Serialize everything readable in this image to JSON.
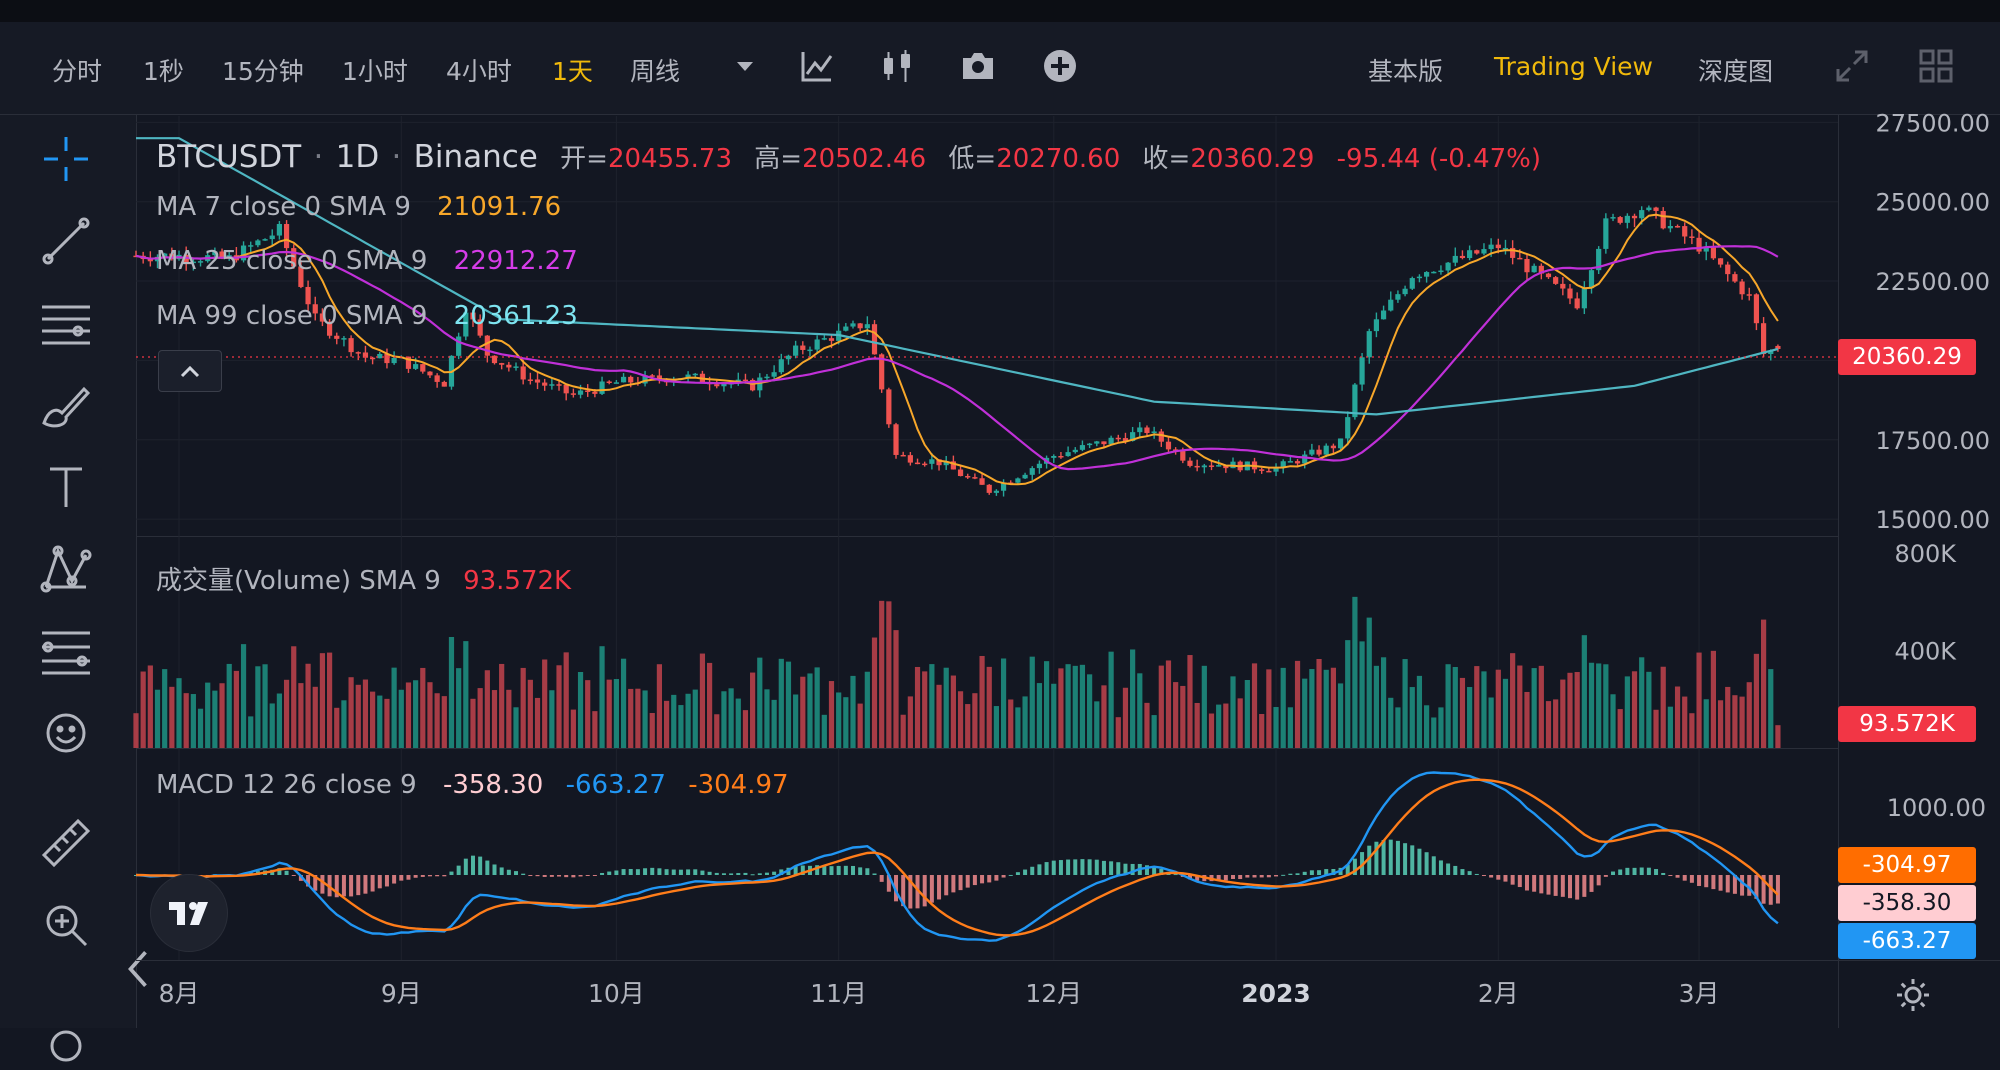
{
  "toolbar": {
    "intervals": [
      "分时",
      "1秒",
      "15分钟",
      "1小时",
      "4小时",
      "1天",
      "周线"
    ],
    "active_interval": "1天",
    "views": [
      "基本版",
      "Trading View",
      "深度图"
    ],
    "active_view": "Trading View"
  },
  "legend": {
    "symbol": "BTCUSDT",
    "interval": "1D",
    "exchange": "Binance",
    "open_label": "开=",
    "open": "20455.73",
    "high_label": "高=",
    "high": "20502.46",
    "low_label": "低=",
    "low": "20270.60",
    "close_label": "收=",
    "close": "20360.29",
    "change": "-95.44 (-0.47%)",
    "ma7_label": "MA 7 close 0 SMA 9",
    "ma7_value": "21091.76",
    "ma25_label": "MA 25 close 0 SMA 9",
    "ma25_value": "22912.27",
    "ma99_label": "MA 99 close 0 SMA 9",
    "ma99_value": "20361.23",
    "volume_label": "成交量(Volume) SMA 9",
    "volume_value": "93.572K",
    "macd_label": "MACD 12 26 close 9",
    "macd_hist": "-358.30",
    "macd_line": "-663.27",
    "macd_signal": "-304.97"
  },
  "price_axis": [
    "27500.00",
    "25000.00",
    "22500.00",
    "17500.00",
    "15000.00"
  ],
  "volume_axis": [
    "800K",
    "400K"
  ],
  "macd_axis": [
    "1000.00"
  ],
  "time_axis": [
    "8月",
    "9月",
    "10月",
    "11月",
    "12月",
    "2023",
    "2月",
    "3月"
  ],
  "badges": {
    "price": "20360.29",
    "volume": "93.572K",
    "macd_signal": "-304.97",
    "macd_hist": "-358.30",
    "macd_line": "-663.27"
  },
  "colors": {
    "up": "#26a69a",
    "down": "#ef5350",
    "ma7": "#f7a72a",
    "ma25": "#c030d8",
    "ma99": "#4fb6c2",
    "macd": "#2196f3",
    "signal": "#ff7d1a",
    "accent": "#f0b90b",
    "badge_price": "#f23645",
    "badge_signal": "#ff6d00",
    "badge_hist": "#ffcdd2",
    "badge_macd": "#2196f3"
  },
  "chart_data": {
    "type": "candlestick",
    "interval": "1D",
    "price_range": [
      14500,
      27700
    ],
    "close_series_sampled": [
      [
        "2022-08-01",
        23300
      ],
      [
        "2022-08-08",
        23200
      ],
      [
        "2022-08-15",
        24100
      ],
      [
        "2022-08-20",
        21300
      ],
      [
        "2022-08-27",
        20100
      ],
      [
        "2022-09-01",
        20000
      ],
      [
        "2022-09-07",
        19300
      ],
      [
        "2022-09-10",
        21700
      ],
      [
        "2022-09-13",
        20200
      ],
      [
        "2022-09-19",
        19400
      ],
      [
        "2022-09-25",
        18900
      ],
      [
        "2022-10-01",
        19300
      ],
      [
        "2022-10-10",
        19500
      ],
      [
        "2022-10-20",
        19200
      ],
      [
        "2022-10-26",
        20300
      ],
      [
        "2022-11-05",
        21200
      ],
      [
        "2022-11-09",
        17000
      ],
      [
        "2022-11-15",
        16800
      ],
      [
        "2022-11-22",
        15900
      ],
      [
        "2022-12-01",
        17000
      ],
      [
        "2022-12-14",
        17800
      ],
      [
        "2022-12-20",
        16800
      ],
      [
        "2023-01-01",
        16600
      ],
      [
        "2023-01-10",
        17400
      ],
      [
        "2023-01-14",
        20900
      ],
      [
        "2023-01-20",
        22700
      ],
      [
        "2023-02-01",
        23600
      ],
      [
        "2023-02-12",
        21800
      ],
      [
        "2023-02-16",
        24300
      ],
      [
        "2023-02-21",
        24800
      ],
      [
        "2023-03-01",
        23600
      ],
      [
        "2023-03-08",
        22000
      ],
      [
        "2023-03-10",
        20200
      ],
      [
        "2023-03-12",
        20360
      ]
    ],
    "ma99_sampled": [
      [
        "2022-08-01",
        27000
      ],
      [
        "2022-09-15",
        21300
      ],
      [
        "2022-11-01",
        20800
      ],
      [
        "2022-12-15",
        18700
      ],
      [
        "2023-01-15",
        18300
      ],
      [
        "2023-02-20",
        19200
      ],
      [
        "2023-03-12",
        20361
      ]
    ],
    "volume_sma9_last": "93.572K",
    "macd_last": {
      "macd": -663.27,
      "signal": -304.97,
      "hist": -358.3
    }
  }
}
